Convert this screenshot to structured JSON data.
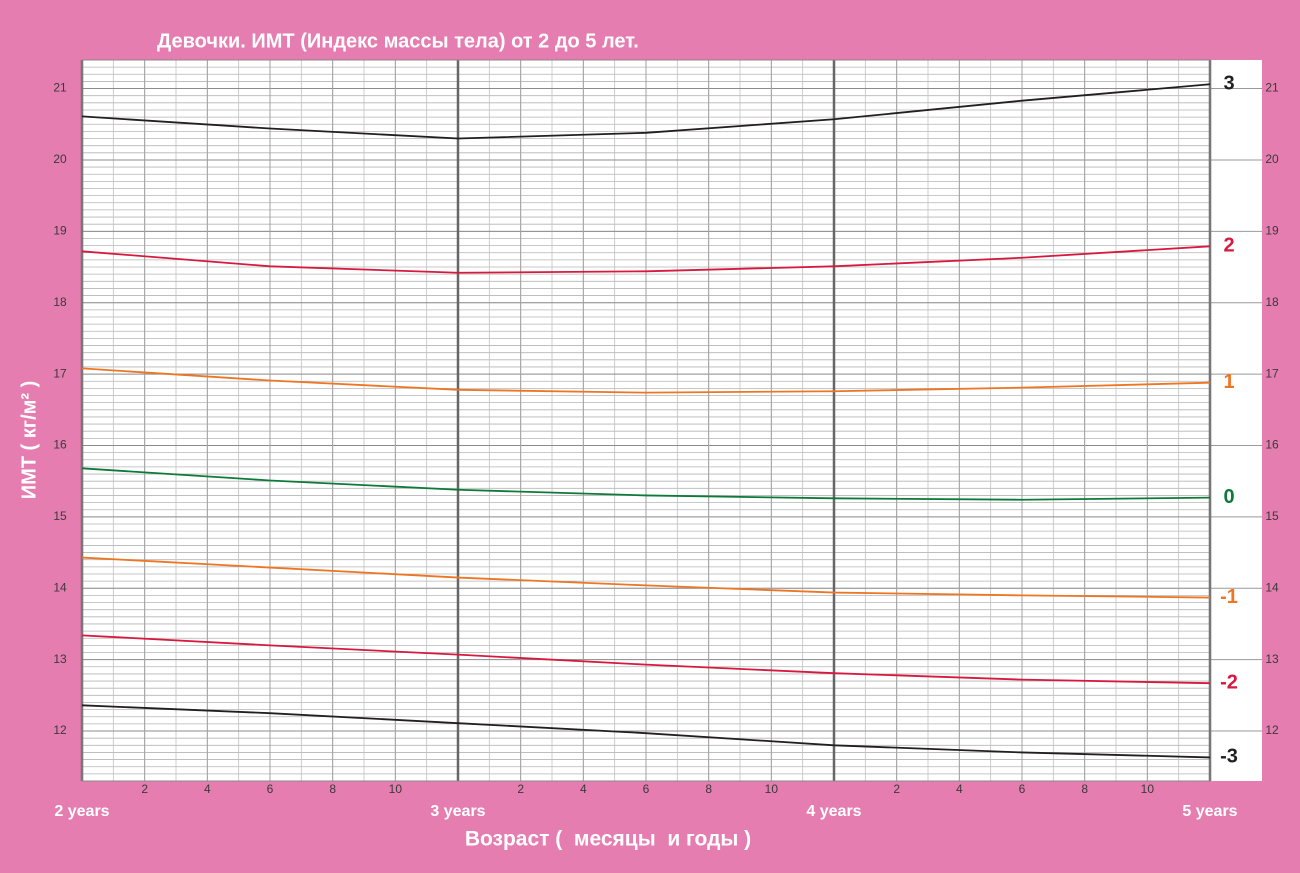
{
  "chart_data": {
    "type": "line",
    "title": "Девочки. ИМТ (Индекс массы тела) от 2 до 5 лет.",
    "x_label": "Возраст (  месяцы  и годы )",
    "y_label": "ИМТ ( кг/м² )",
    "x": [
      24,
      30,
      36,
      42,
      48,
      54,
      60
    ],
    "xlim": [
      24,
      60
    ],
    "ylim": [
      11.3,
      21.4
    ],
    "yticks": [
      12,
      13,
      14,
      15,
      16,
      17,
      18,
      19,
      20,
      21
    ],
    "xticks_major": [
      {
        "value": 24,
        "label": "2 years"
      },
      {
        "value": 36,
        "label": "3 years"
      },
      {
        "value": 48,
        "label": "4 years"
      },
      {
        "value": 60,
        "label": "5 years"
      }
    ],
    "xticks": [
      {
        "value": 26,
        "label": "2"
      },
      {
        "value": 28,
        "label": "4"
      },
      {
        "value": 30,
        "label": "6"
      },
      {
        "value": 32,
        "label": "8"
      },
      {
        "value": 34,
        "label": "10"
      },
      {
        "value": 38,
        "label": "2"
      },
      {
        "value": 40,
        "label": "4"
      },
      {
        "value": 42,
        "label": "6"
      },
      {
        "value": 44,
        "label": "8"
      },
      {
        "value": 46,
        "label": "10"
      },
      {
        "value": 50,
        "label": "2"
      },
      {
        "value": 52,
        "label": "4"
      },
      {
        "value": 54,
        "label": "6"
      },
      {
        "value": 56,
        "label": "8"
      },
      {
        "value": 58,
        "label": "10"
      }
    ],
    "grid": true,
    "series": [
      {
        "name": "3",
        "color": "#231f20",
        "values": [
          20.61,
          20.44,
          20.3,
          20.38,
          20.57,
          20.83,
          21.06
        ]
      },
      {
        "name": "2",
        "color": "#d7193f",
        "values": [
          18.72,
          18.51,
          18.42,
          18.44,
          18.51,
          18.63,
          18.79
        ]
      },
      {
        "name": "1",
        "color": "#ee7623",
        "values": [
          17.08,
          16.91,
          16.78,
          16.74,
          16.76,
          16.81,
          16.88
        ]
      },
      {
        "name": "0",
        "color": "#0d7a3a",
        "values": [
          15.68,
          15.51,
          15.38,
          15.3,
          15.26,
          15.24,
          15.27
        ]
      },
      {
        "name": "-1",
        "color": "#ee7623",
        "values": [
          14.43,
          14.29,
          14.15,
          14.04,
          13.94,
          13.9,
          13.87
        ]
      },
      {
        "name": "-2",
        "color": "#d7193f",
        "values": [
          13.34,
          13.2,
          13.07,
          12.93,
          12.81,
          12.72,
          12.67
        ]
      },
      {
        "name": "-3",
        "color": "#231f20",
        "values": [
          12.36,
          12.25,
          12.11,
          11.97,
          11.8,
          11.7,
          11.63
        ]
      }
    ]
  }
}
